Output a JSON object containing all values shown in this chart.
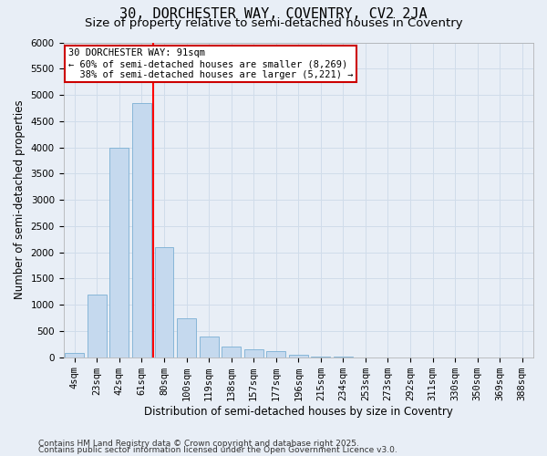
{
  "title_line1": "30, DORCHESTER WAY, COVENTRY, CV2 2JA",
  "title_line2": "Size of property relative to semi-detached houses in Coventry",
  "xlabel": "Distribution of semi-detached houses by size in Coventry",
  "ylabel": "Number of semi-detached properties",
  "categories": [
    "4sqm",
    "23sqm",
    "42sqm",
    "61sqm",
    "80sqm",
    "100sqm",
    "119sqm",
    "138sqm",
    "157sqm",
    "177sqm",
    "196sqm",
    "215sqm",
    "234sqm",
    "253sqm",
    "273sqm",
    "292sqm",
    "311sqm",
    "330sqm",
    "350sqm",
    "369sqm",
    "388sqm"
  ],
  "values": [
    80,
    1200,
    4000,
    4850,
    2100,
    750,
    400,
    210,
    160,
    120,
    50,
    15,
    8,
    3,
    2,
    1,
    0,
    0,
    0,
    0,
    0
  ],
  "bar_color": "#c5d9ee",
  "bar_edge_color": "#7bafd4",
  "red_line_x": 3.5,
  "annotation_text": "30 DORCHESTER WAY: 91sqm\n← 60% of semi-detached houses are smaller (8,269)\n  38% of semi-detached houses are larger (5,221) →",
  "annotation_box_color": "#ffffff",
  "annotation_box_edge_color": "#cc0000",
  "ylim": [
    0,
    6000
  ],
  "yticks": [
    0,
    500,
    1000,
    1500,
    2000,
    2500,
    3000,
    3500,
    4000,
    4500,
    5000,
    5500,
    6000
  ],
  "grid_color": "#d0dcea",
  "background_color": "#e8eef6",
  "footer_line1": "Contains HM Land Registry data © Crown copyright and database right 2025.",
  "footer_line2": "Contains public sector information licensed under the Open Government Licence v3.0.",
  "title_fontsize": 11,
  "subtitle_fontsize": 9.5,
  "axis_label_fontsize": 8.5,
  "tick_fontsize": 7.5,
  "footer_fontsize": 6.5
}
